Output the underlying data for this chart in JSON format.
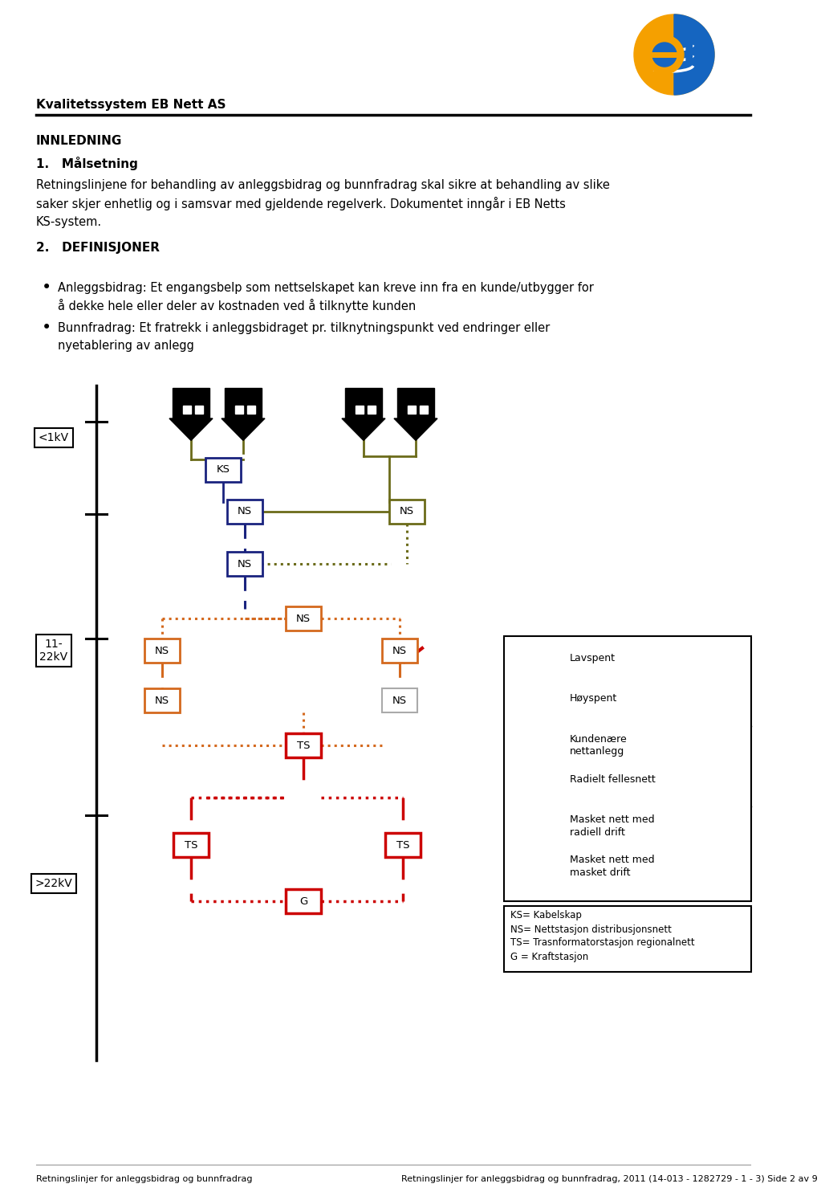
{
  "title_header": "Kvalitetssystem EB Nett AS",
  "section1_title": "INNLEDNING",
  "subsection1": "1.   Målsetning",
  "para1_lines": [
    "Retningslinjene for behandling av anleggsbidrag og bunnfradrag skal sikre at behandling av slike",
    "saker skjer enhetlig og i samsvar med gjeldende regelverk. Dokumentet inngår i EB Netts",
    "KS-system."
  ],
  "section2_title": "2.   DEFINISJONER",
  "bullet1": "Anleggsbidrag: Et engangsbelp som nettselskapet kan kreve inn fra en kunde/utbygger for\nå dekke hele eller deler av kostnaden ved å tilknytte kunden",
  "bullet2": "Bunnfradrag: Et fratrekk i anleggsbidraget pr. tilknytningspunkt ved endringer eller\nnyetablering av anlegg",
  "footer_left": "Retningslinjer for anleggsbidrag og bunnfradrag",
  "footer_right": "Retningslinjer for anleggsbidrag og bunnfradrag, 2011 (14-013 - 1282729 - 1 - 3) Side 2 av 9",
  "abbrev_text": "KS= Kabelskap\nNS= Nettstasjon distribusjonsnett\nTS= Trasnformatorstasjon regionalnett\nG = Kraftstasjon",
  "col_olive": "#6B6B1A",
  "col_blue": "#1A237E",
  "col_orange": "#D4691E",
  "col_red": "#CC0000",
  "col_black": "#000000",
  "col_grey": "#AAAAAA",
  "bg_color": "#ffffff"
}
